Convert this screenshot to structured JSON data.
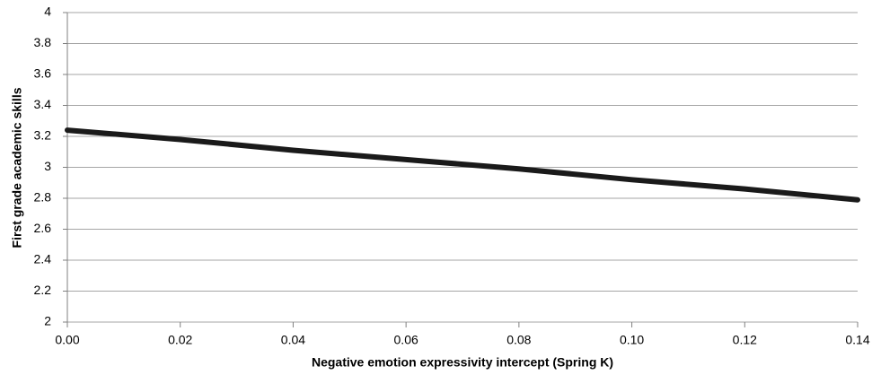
{
  "chart_data": {
    "type": "line",
    "xlabel": "Negative emotion expressivity intercept (Spring K)",
    "ylabel": "First grade academic skills",
    "x": [
      0,
      0.02,
      0.04,
      0.06,
      0.08,
      0.1,
      0.12,
      0.14
    ],
    "series": [
      {
        "name": "First grade academic skills",
        "color": "#1a1a1a",
        "values": [
          3.24,
          3.18,
          3.11,
          3.05,
          2.99,
          2.92,
          2.86,
          2.79
        ]
      }
    ],
    "xlim": [
      0,
      0.14
    ],
    "xticks": [
      {
        "value": 0,
        "label": "0.00"
      },
      {
        "value": 0.02,
        "label": "0.02"
      },
      {
        "value": 0.04,
        "label": "0.04"
      },
      {
        "value": 0.06,
        "label": "0.06"
      },
      {
        "value": 0.08,
        "label": "0.08"
      },
      {
        "value": 0.1,
        "label": "0.10"
      },
      {
        "value": 0.12,
        "label": "0.12"
      },
      {
        "value": 0.14,
        "label": "0.14"
      }
    ],
    "ylim": [
      2,
      4
    ],
    "yticks": [
      2,
      2.2,
      2.4,
      2.6,
      2.8,
      3,
      3.2,
      3.4,
      3.6,
      3.8,
      4
    ],
    "grid": true
  }
}
